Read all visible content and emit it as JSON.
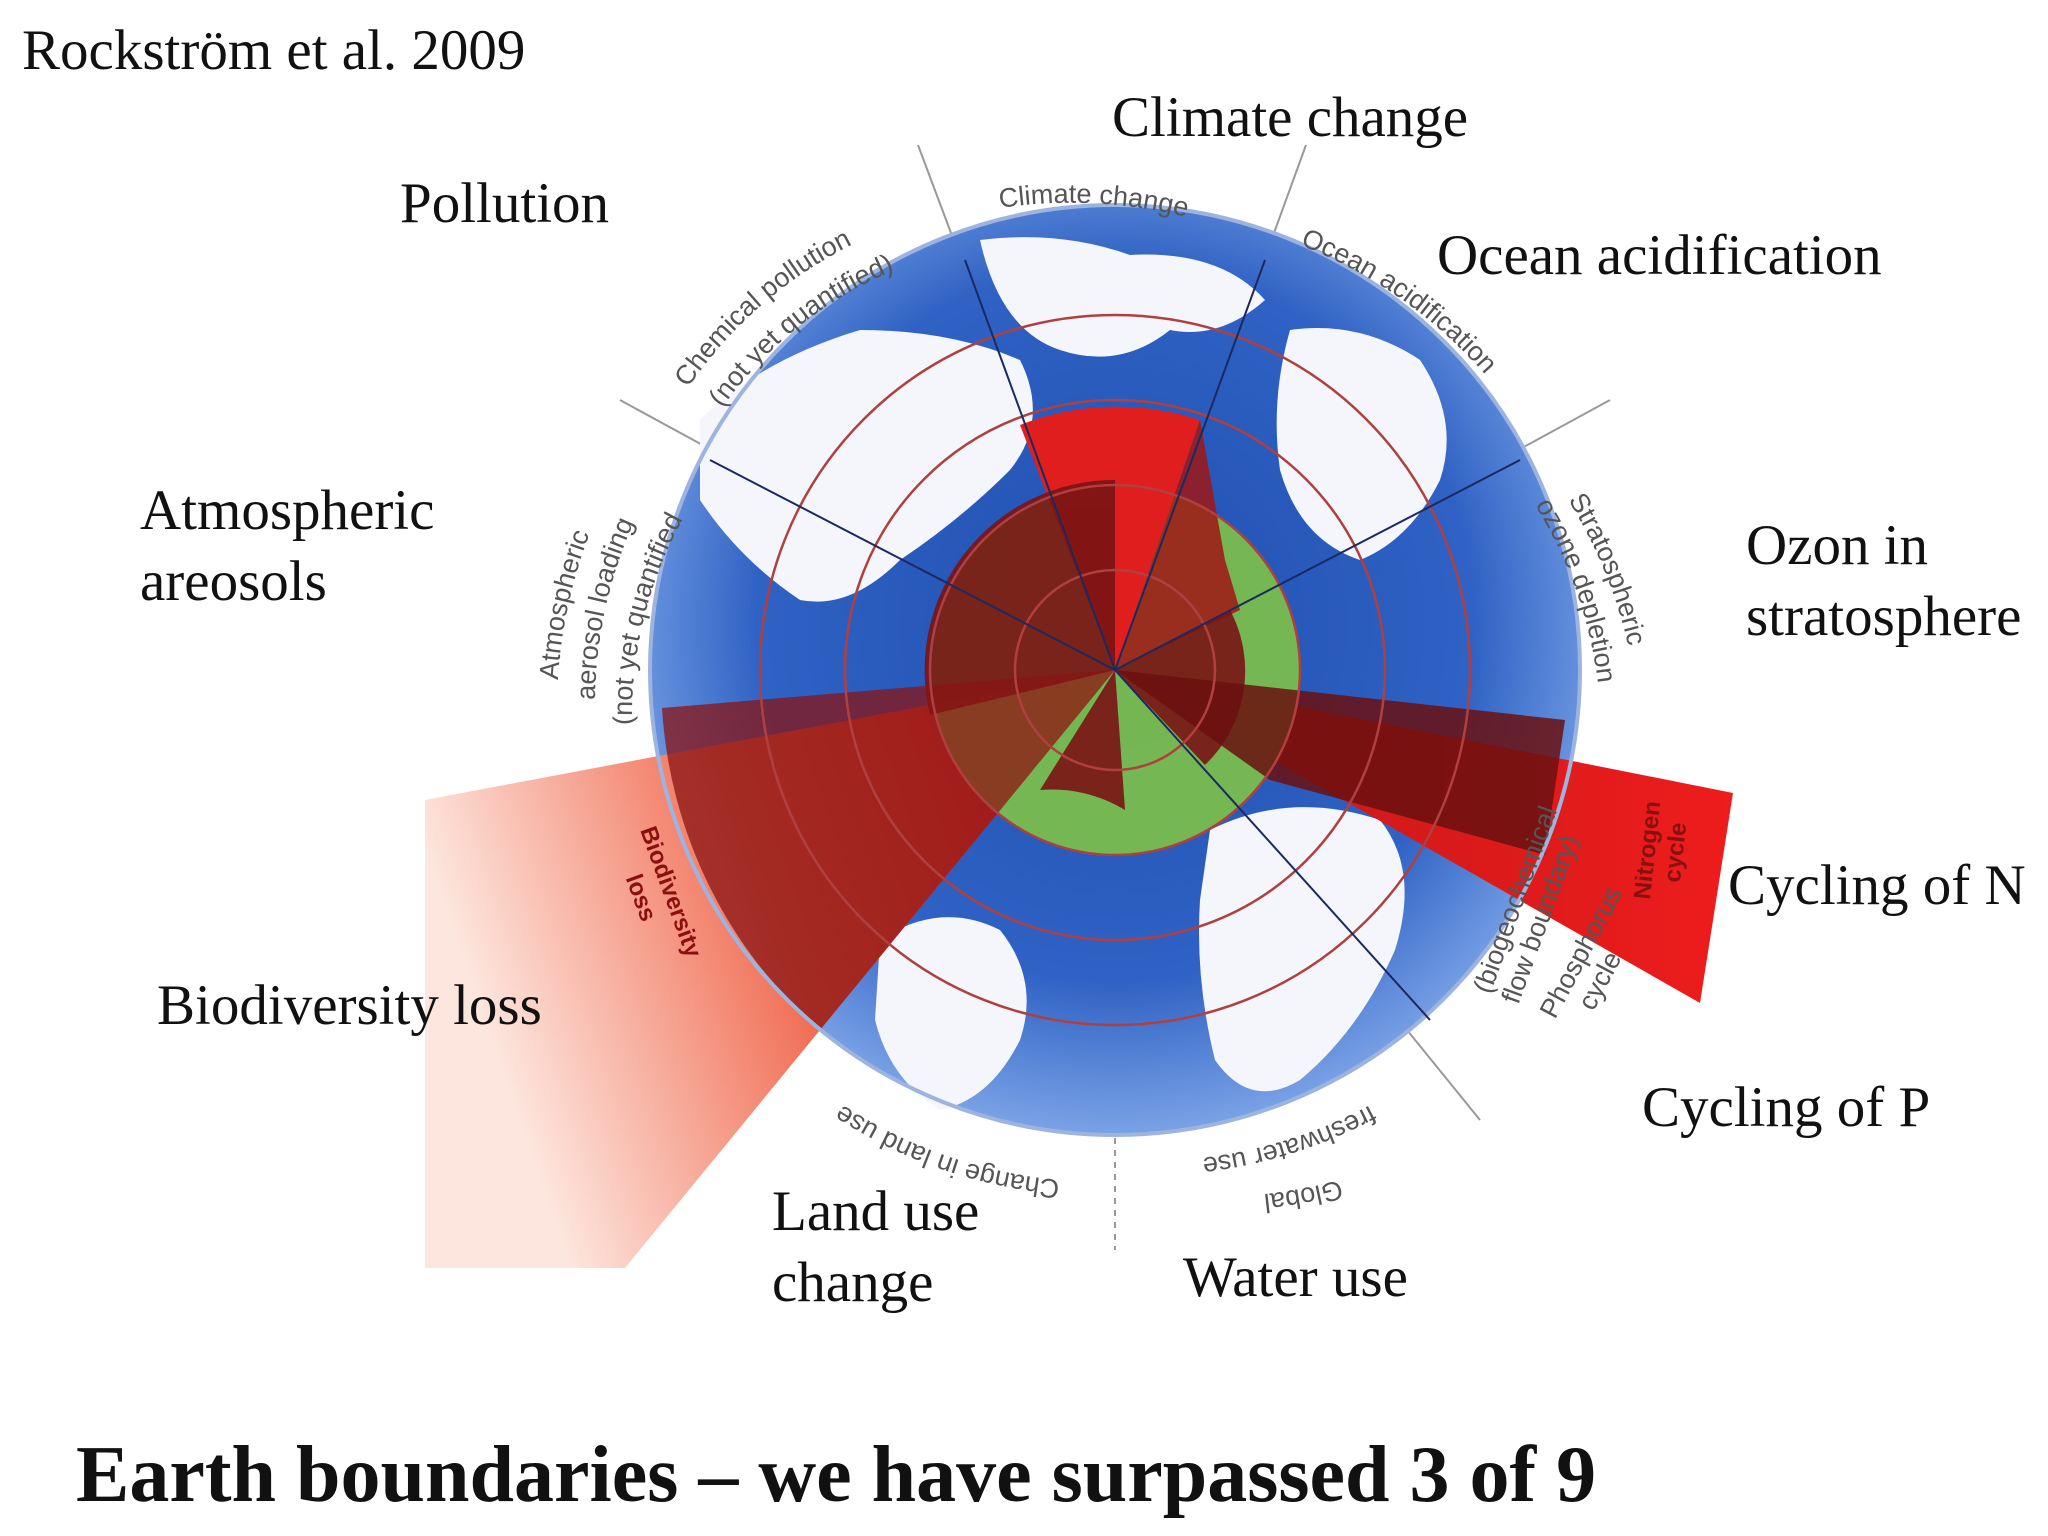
{
  "citation": "Rockström et al. 2009",
  "headline": "Earth boundaries – we have surpassed 3 of 9",
  "outer_labels": {
    "pollution": "Pollution",
    "climate": "Climate change",
    "ocean": "Ocean acidification",
    "ozone_1": "Ozon in",
    "ozone_2": "stratosphere",
    "aerosols_1": "Atmospheric",
    "aerosols_2": "areosols",
    "nitrogen": "Cycling of N",
    "phosphorus": "Cycling of P",
    "biodiversity": "Biodiversity loss",
    "landuse_1": "Land use",
    "landuse_2": "change",
    "water": "Water use"
  },
  "ring_labels": {
    "climate": "Climate change",
    "chemical_1": "Chemical pollution",
    "chemical_2": "(not yet quantified)",
    "ocean": "Ocean acidification",
    "ozone_1": "Stratospheric",
    "ozone_2": "ozone depletion",
    "aerosol_1": "Atmospheric",
    "aerosol_2": "aerosol loading",
    "aerosol_3": "(not yet quantified)",
    "landuse": "Change in land use",
    "water_1": "Global",
    "water_2": "freshwater use",
    "phosphorus_1": "Phosphorus",
    "phosphorus_2": "cycle",
    "biogeo_1": "(biogeochemical",
    "biogeo_2": "flow boundary)",
    "nitrogen_1": "Nitrogen",
    "nitrogen_2": "cycle",
    "biodiversity_1": "Biodiversity",
    "biodiversity_2": "loss"
  },
  "colors": {
    "ocean_blue": "#2f5fc0",
    "safe_zone_green": "#7cbf4a",
    "exceeded_red": "#e01e1e",
    "dark_red": "#7a1414",
    "ring_line": "#b04040"
  }
}
